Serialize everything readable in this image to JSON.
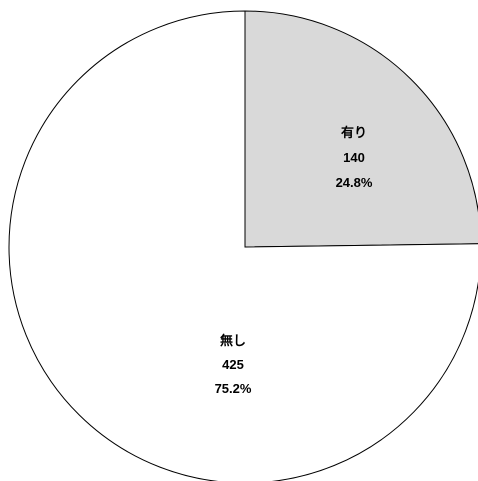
{
  "chart_data": {
    "type": "pie",
    "start_angle": "12 o'clock",
    "direction": "clockwise",
    "slices": [
      {
        "label": "有り",
        "value": 140,
        "percent": "24.8%",
        "color": "#d9d9d9"
      },
      {
        "label": "無し",
        "value": 425,
        "percent": "75.2%",
        "color": "#ffffff"
      }
    ],
    "stroke_color": "#000000"
  }
}
